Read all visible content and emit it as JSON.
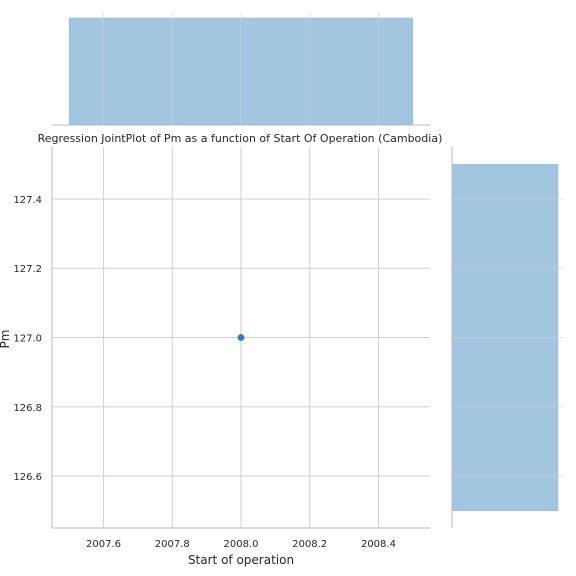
{
  "chart_data": {
    "type": "scatter",
    "title": "Regression JointPlot of Pm as a function of Start Of Operation (Cambodia)",
    "xlabel": "Start of operation",
    "ylabel": "Pm",
    "xlim": [
      2007.45,
      2008.55
    ],
    "ylim": [
      126.45,
      127.55
    ],
    "x_ticks": [
      2007.6,
      2007.8,
      2008.0,
      2008.2,
      2008.4
    ],
    "x_tick_labels": [
      "2007.6",
      "2007.8",
      "2008.0",
      "2008.2",
      "2008.4"
    ],
    "y_ticks": [
      126.6,
      126.8,
      127.0,
      127.2,
      127.4
    ],
    "y_tick_labels": [
      "126.6",
      "126.8",
      "127.0",
      "127.2",
      "127.4"
    ],
    "points": [
      {
        "x": 2008.0,
        "y": 127.0
      }
    ],
    "marginal_x_histogram": {
      "bin_range": [
        2007.5,
        2008.5
      ],
      "count": 1
    },
    "marginal_y_histogram": {
      "bin_range": [
        126.5,
        127.5
      ],
      "count": 1
    },
    "grid": true,
    "colors": {
      "point": "#3a7ab0",
      "histogram": "#a3c6e0",
      "histogram_edge": "#8fb7d6",
      "grid": "#cfcfcf",
      "spine": "#b8b8b8",
      "text": "#262626"
    }
  }
}
